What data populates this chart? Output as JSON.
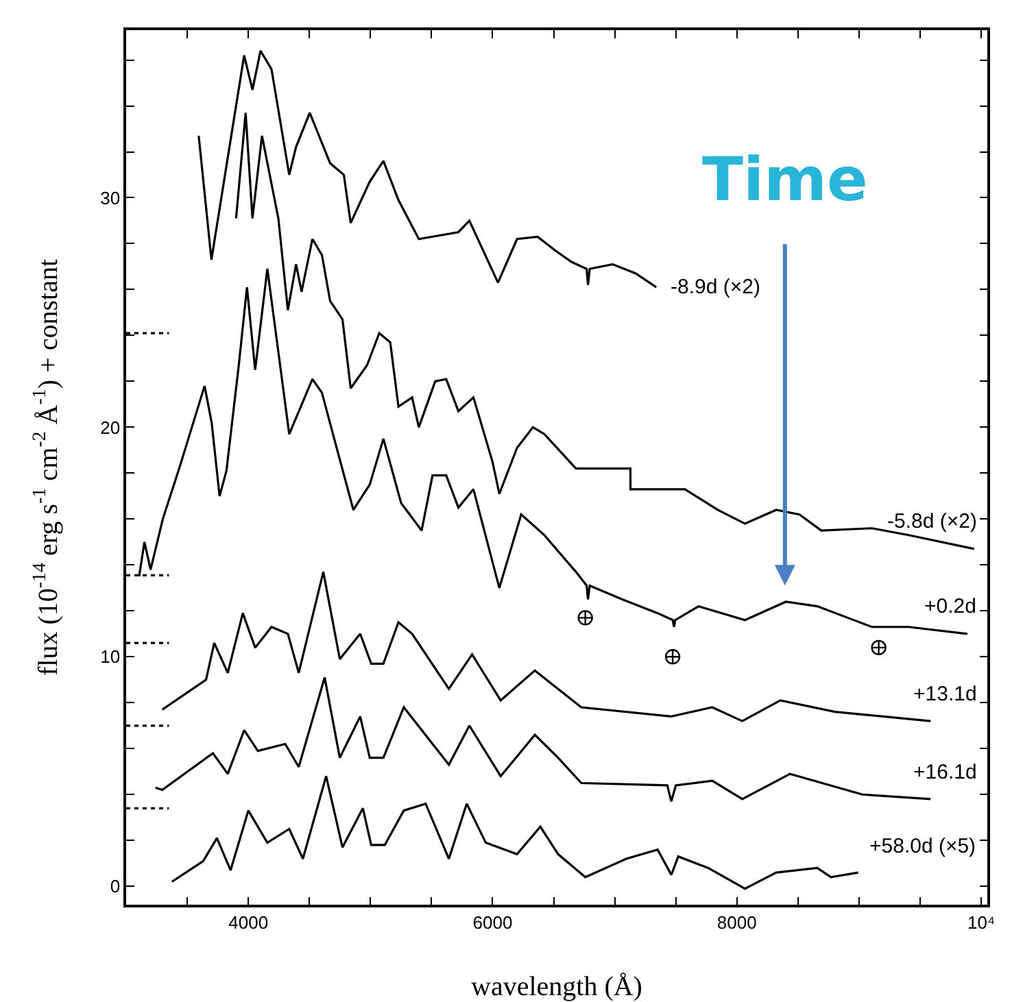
{
  "chart_data": {
    "type": "line",
    "xlabel": "wavelength (Å)",
    "ylabel": "flux (10$^{-14}$ erg s$^{-1}$ cm$^{-2}$ Å$^{-1}$) + constant",
    "xlim": [
      3000,
      10050
    ],
    "ylim": [
      -0.8,
      37.3
    ],
    "xticks": [
      {
        "value": 3500,
        "label": null
      },
      4000,
      {
        "value": 4500,
        "label": null
      },
      {
        "value": 5000,
        "label": null
      },
      {
        "value": 5500,
        "label": null
      },
      6000,
      {
        "value": 6500,
        "label": null
      },
      {
        "value": 7000,
        "label": null
      },
      {
        "value": 7500,
        "label": null
      },
      8000,
      {
        "value": 8500,
        "label": null
      },
      {
        "value": 9000,
        "label": null
      },
      {
        "value": 9500,
        "label": null
      },
      {
        "value": 10000,
        "label": "10⁴"
      }
    ],
    "yticks": [
      0,
      {
        "value": 2,
        "label": null
      },
      {
        "value": 4,
        "label": null
      },
      {
        "value": 6,
        "label": null
      },
      {
        "value": 8,
        "label": null
      },
      10,
      {
        "value": 12,
        "label": null
      },
      {
        "value": 14,
        "label": null
      },
      {
        "value": 16,
        "label": null
      },
      {
        "value": 18,
        "label": null
      },
      20,
      {
        "value": 22,
        "label": null
      },
      {
        "value": 24,
        "label": null
      },
      {
        "value": 26,
        "label": null
      },
      {
        "value": 28,
        "label": null
      },
      30,
      {
        "value": 32,
        "label": null
      },
      {
        "value": 34,
        "label": null
      },
      {
        "value": 36,
        "label": null
      }
    ],
    "grid": false,
    "legend": "right",
    "marker": "none",
    "line_style": "solid",
    "series": [
      {
        "name": "-8.9d (×2)",
        "color": "#000000",
        "x": [
          3594,
          3698,
          3966,
          4034,
          4100,
          4190,
          4335,
          4390,
          4503,
          4670,
          4782,
          4838,
          4994,
          5106,
          5229,
          5396,
          5720,
          5810,
          6044,
          6200,
          6368,
          6513,
          6647,
          6770,
          6781,
          6795,
          6982,
          7172,
          7340
        ],
        "values": [
          32.7,
          27.3,
          36.2,
          34.7,
          36.4,
          35.6,
          31.0,
          32.2,
          33.7,
          31.5,
          31.0,
          28.9,
          30.7,
          31.6,
          29.9,
          28.2,
          28.5,
          29.0,
          26.3,
          28.2,
          28.3,
          27.7,
          27.2,
          26.9,
          26.2,
          26.9,
          27.1,
          26.7,
          26.1
        ]
      },
      {
        "name": "-5.8d (×2)",
        "color": "#000000",
        "x": [
          3900,
          3978,
          4034,
          4112,
          4246,
          4324,
          4391,
          4436,
          4525,
          4603,
          4670,
          4771,
          4838,
          4972,
          5072,
          5162,
          5229,
          5341,
          5396,
          5530,
          5620,
          5720,
          5843,
          5999,
          6055,
          6200,
          6330,
          6424,
          6682,
          7128,
          7129,
          7575,
          7843,
          8066,
          8322,
          8512,
          8691,
          9105,
          9406,
          9942
        ],
        "values": [
          29.1,
          33.7,
          29.1,
          32.7,
          29.1,
          25.1,
          27.1,
          25.9,
          28.2,
          27.5,
          25.5,
          24.7,
          21.7,
          22.7,
          24.1,
          23.7,
          20.9,
          21.3,
          20.0,
          22.0,
          22.1,
          20.7,
          21.3,
          18.5,
          17.1,
          19.1,
          20.0,
          19.7,
          18.2,
          18.2,
          17.3,
          17.3,
          16.4,
          15.8,
          16.4,
          16.2,
          15.5,
          15.6,
          15.3,
          14.7
        ]
      },
      {
        "name": "+0.2d",
        "color": "#000000",
        "x": [
          3106,
          3150,
          3200,
          3300,
          3440,
          3642,
          3700,
          3765,
          3821,
          3922,
          3989,
          4056,
          4156,
          4335,
          4525,
          4603,
          4693,
          4860,
          4994,
          5106,
          5251,
          5419,
          5508,
          5620,
          5720,
          5843,
          6055,
          6234,
          6424,
          6536,
          6682,
          6770,
          6781,
          6795,
          7061,
          7351,
          7475,
          7485,
          7495,
          7687,
          8066,
          8401,
          8658,
          9105,
          9406,
          9887
        ],
        "values": [
          13.5,
          15.0,
          13.8,
          16.0,
          18.3,
          21.8,
          20.2,
          17.0,
          18.1,
          22.7,
          26.1,
          22.5,
          26.9,
          19.7,
          22.1,
          21.5,
          19.7,
          16.4,
          17.5,
          19.5,
          16.7,
          15.5,
          17.9,
          17.9,
          16.5,
          17.3,
          13.0,
          16.2,
          15.3,
          14.6,
          13.7,
          13.1,
          12.5,
          13.1,
          12.5,
          11.9,
          11.6,
          11.3,
          11.6,
          12.2,
          11.6,
          12.4,
          12.2,
          11.3,
          11.3,
          11.0
        ]
      },
      {
        "name": "+13.1d",
        "color": "#000000",
        "x": [
          3296,
          3654,
          3721,
          3832,
          3955,
          4056,
          4190,
          4324,
          4413,
          4614,
          4749,
          4916,
          5006,
          5106,
          5229,
          5341,
          5642,
          5832,
          6066,
          6346,
          6536,
          6726,
          7463,
          7798,
          8044,
          8356,
          8803,
          9585
        ],
        "values": [
          7.7,
          9.0,
          10.6,
          9.3,
          11.9,
          10.4,
          11.3,
          11.0,
          9.3,
          13.7,
          9.9,
          11.0,
          9.7,
          9.7,
          11.5,
          11.0,
          8.6,
          10.1,
          8.1,
          9.4,
          8.6,
          7.8,
          7.4,
          7.8,
          7.2,
          8.1,
          7.6,
          7.2
        ]
      },
      {
        "name": "+16.1d",
        "color": "#000000",
        "x": [
          3240,
          3296,
          3710,
          3832,
          3966,
          4078,
          4302,
          4413,
          4625,
          4749,
          4916,
          4994,
          5106,
          5273,
          5642,
          5810,
          6066,
          6346,
          6536,
          6726,
          7430,
          7463,
          7500,
          7798,
          8044,
          8435,
          9027,
          9585
        ],
        "values": [
          4.3,
          4.2,
          5.8,
          4.9,
          6.8,
          5.9,
          6.2,
          5.2,
          9.1,
          5.6,
          7.4,
          5.6,
          5.6,
          7.8,
          5.3,
          7.0,
          4.8,
          6.6,
          5.6,
          4.5,
          4.4,
          3.7,
          4.4,
          4.6,
          3.8,
          4.9,
          4.0,
          3.8
        ]
      },
      {
        "name": "+58.0d (×5)",
        "color": "#000000",
        "x": [
          3375,
          3631,
          3743,
          3855,
          4000,
          4156,
          4335,
          4447,
          4637,
          4771,
          4938,
          5006,
          5117,
          5273,
          5452,
          5642,
          5788,
          5944,
          6200,
          6391,
          6536,
          6759,
          7095,
          7351,
          7463,
          7520,
          7765,
          8066,
          8322,
          8658,
          8770,
          8993
        ],
        "values": [
          0.2,
          1.1,
          2.1,
          0.7,
          3.3,
          1.9,
          2.5,
          1.2,
          4.8,
          1.7,
          3.4,
          1.8,
          1.8,
          3.3,
          3.6,
          1.2,
          3.6,
          1.9,
          1.4,
          2.6,
          1.4,
          0.4,
          1.2,
          1.6,
          0.5,
          1.3,
          0.8,
          -0.1,
          0.6,
          0.8,
          0.4,
          0.6
        ]
      },
      {
        "color": "#000000",
        "line_style": "dotted",
        "x": [
          3000,
          3350
        ],
        "values": [
          24.1,
          24.1
        ]
      },
      {
        "color": "#000000",
        "line_style": "dotted",
        "x": [
          3000,
          3350
        ],
        "values": [
          13.55,
          13.55
        ]
      },
      {
        "color": "#000000",
        "line_style": "dotted",
        "x": [
          3000,
          3350
        ],
        "values": [
          10.6,
          10.6
        ]
      },
      {
        "color": "#000000",
        "line_style": "dotted",
        "x": [
          3000,
          3350
        ],
        "values": [
          7.0,
          7.0
        ]
      },
      {
        "color": "#000000",
        "line_style": "dotted",
        "x": [
          3000,
          3350
        ],
        "values": [
          3.4,
          3.4
        ]
      },
      {
        "type": "scatter",
        "marker": "cross",
        "color": "#000000",
        "x": [
          6759,
          7474,
          9161
        ],
        "values": [
          11.7,
          10.0,
          10.4
        ]
      }
    ],
    "annotations": [
      "Time"
    ]
  }
}
